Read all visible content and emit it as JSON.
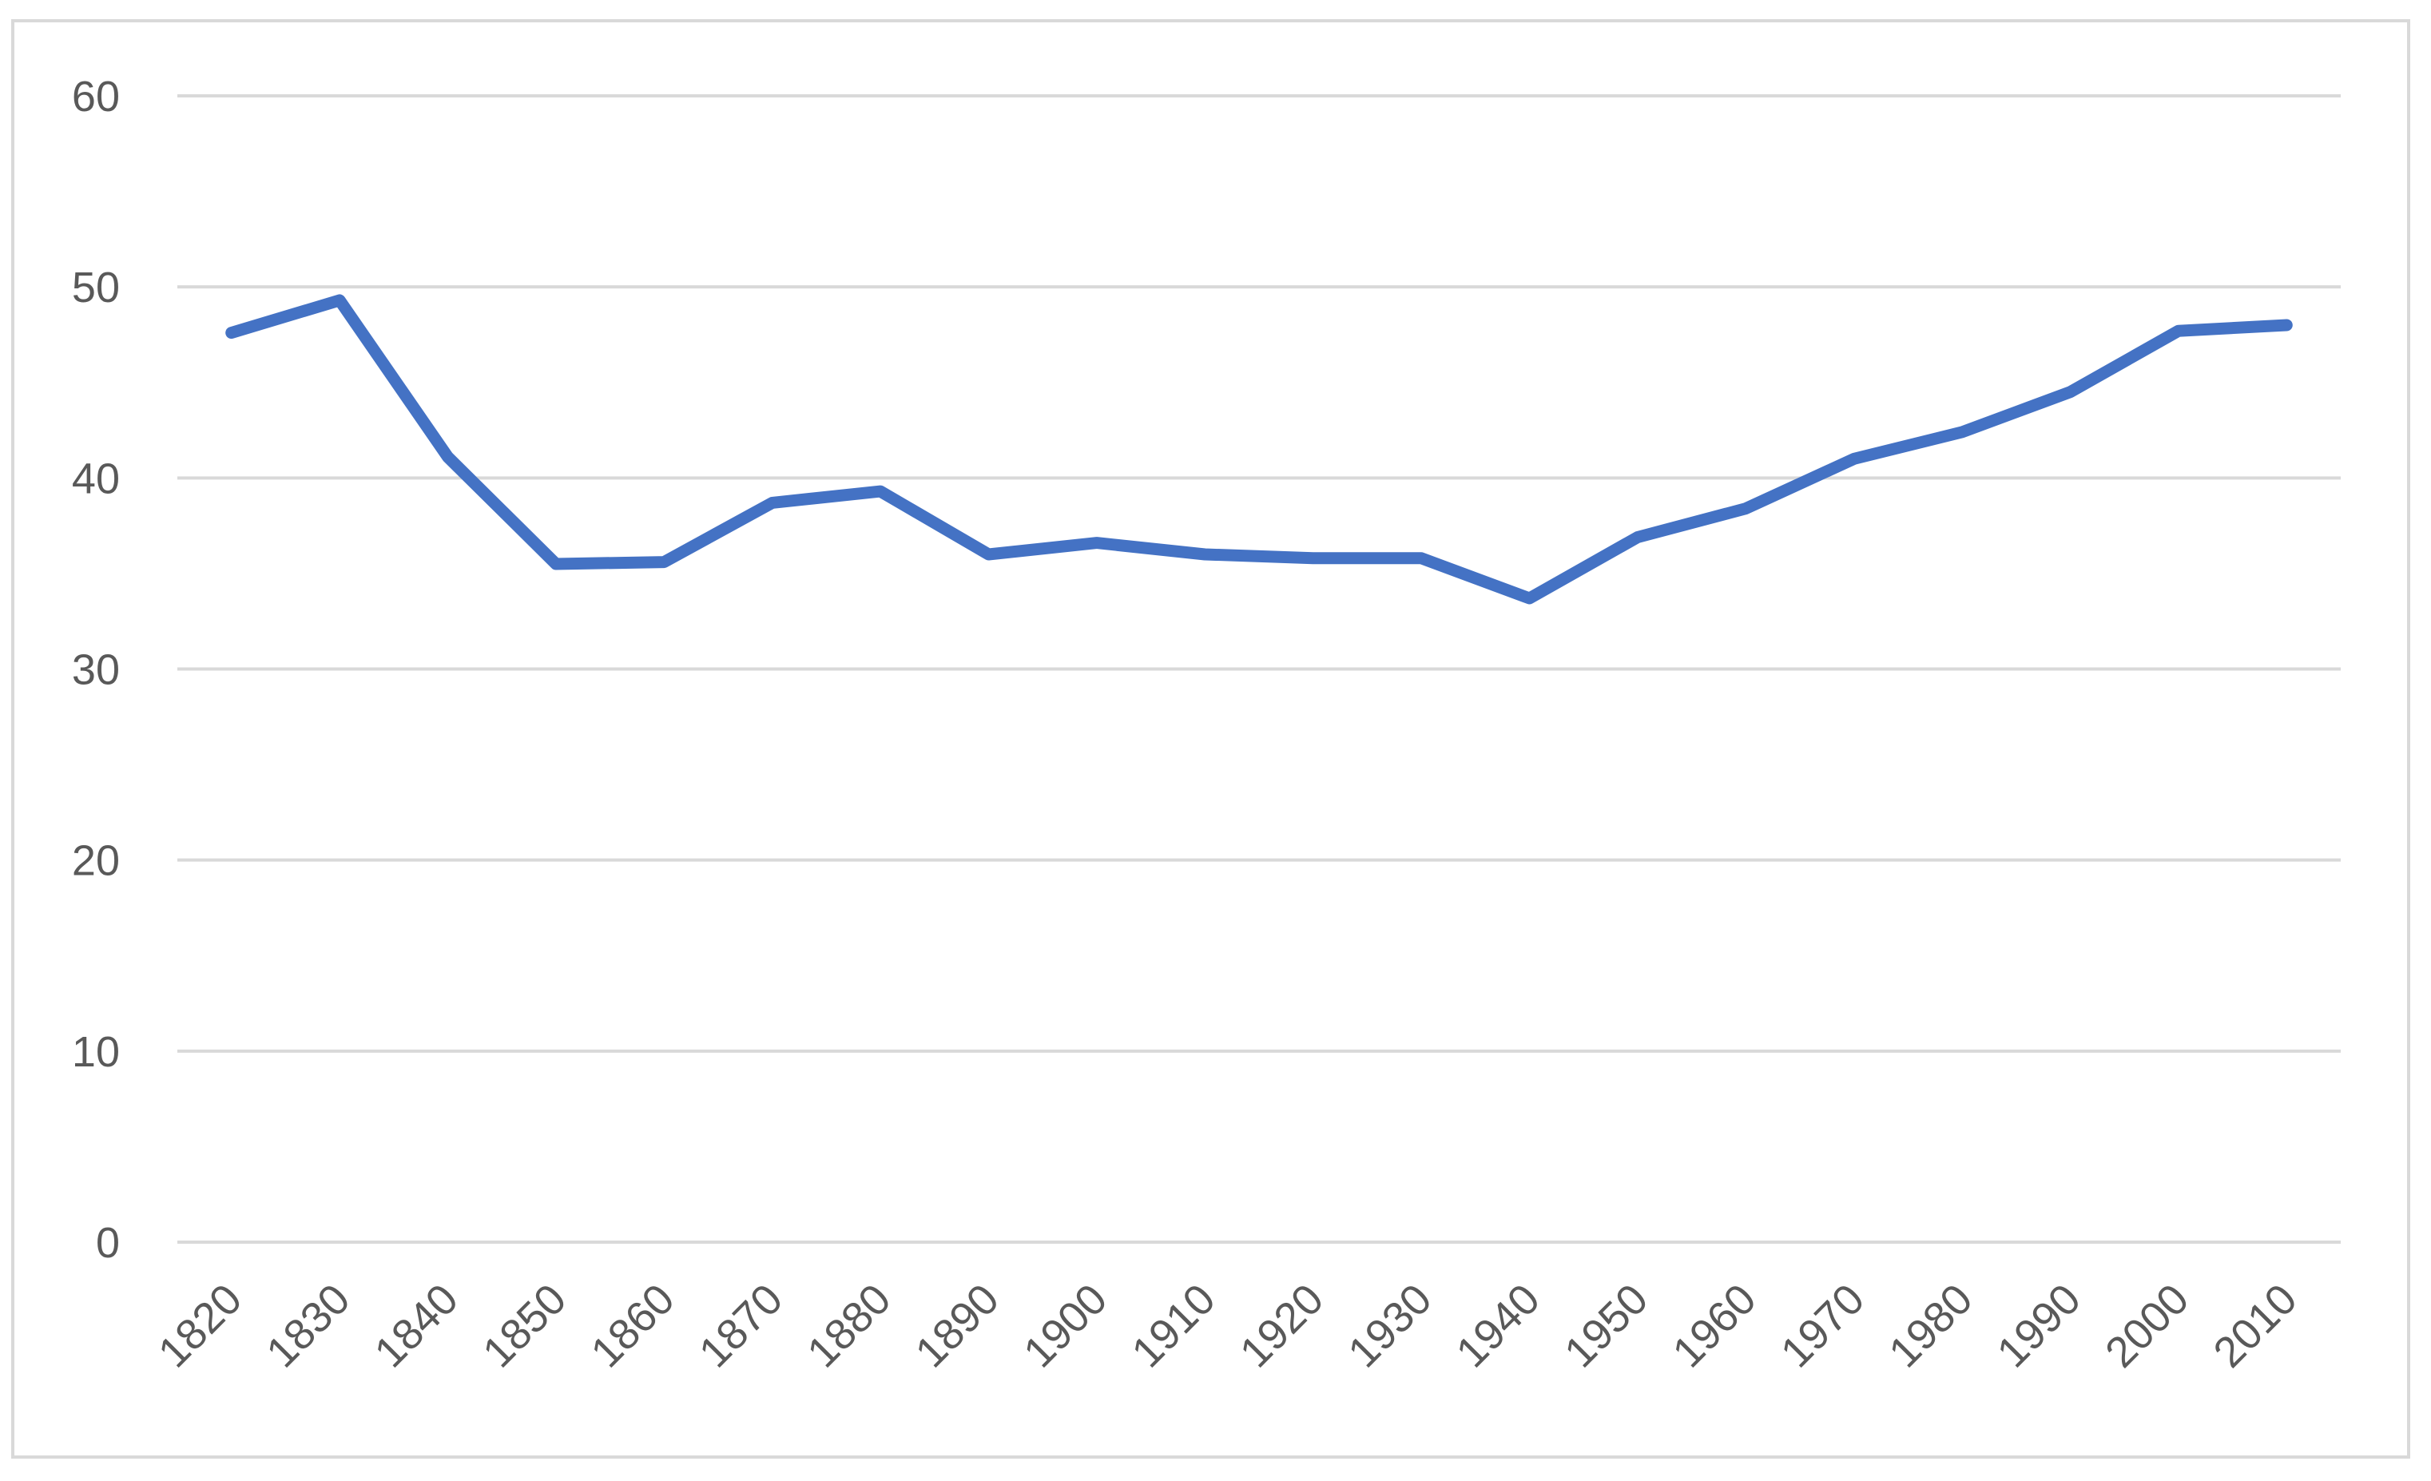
{
  "chart_data": {
    "type": "line",
    "title": "",
    "xlabel": "",
    "ylabel": "",
    "categories": [
      "1820",
      "1830",
      "1840",
      "1850",
      "1860",
      "1870",
      "1880",
      "1890",
      "1900",
      "1910",
      "1920",
      "1930",
      "1940",
      "1950",
      "1960",
      "1970",
      "1980",
      "1990",
      "2000",
      "2010"
    ],
    "series": [
      {
        "values": [
          47.6,
          49.3,
          41.1,
          35.5,
          35.6,
          38.7,
          39.3,
          36.0,
          36.6,
          36.0,
          35.8,
          35.8,
          33.7,
          36.9,
          38.4,
          41.0,
          42.4,
          44.5,
          47.7,
          48.0
        ],
        "color": "#4472c4"
      }
    ],
    "ylim": [
      0,
      60
    ],
    "yticks": [
      "0",
      "10",
      "20",
      "30",
      "40",
      "50",
      "60"
    ],
    "grid": true,
    "legend": "none"
  }
}
